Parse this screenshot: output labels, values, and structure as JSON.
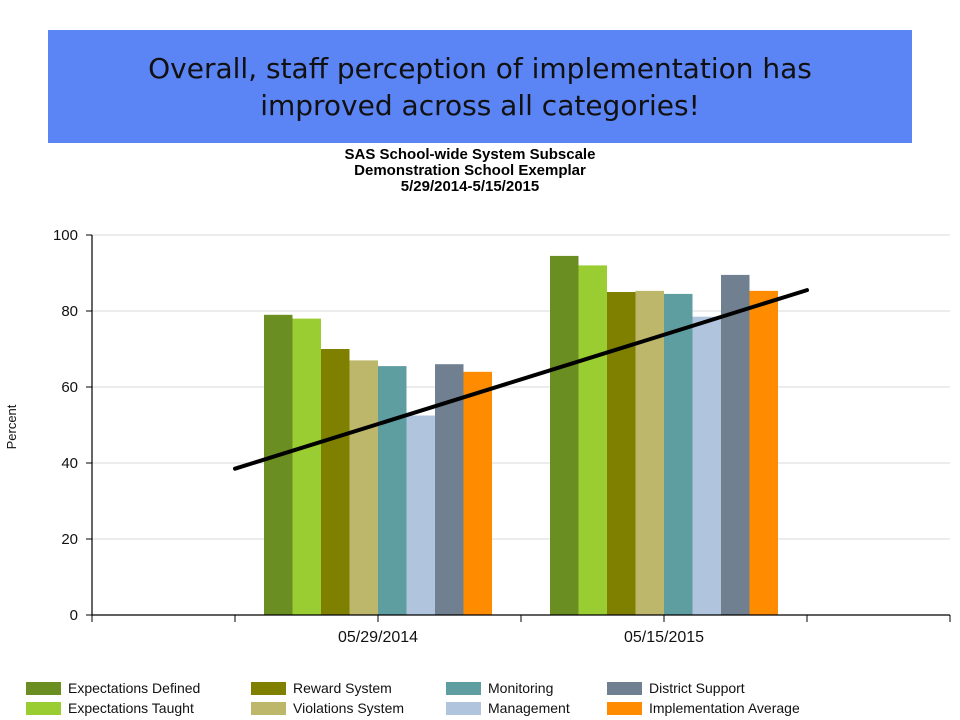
{
  "banner": {
    "text": "Overall, staff perception of implementation has improved across all categories!"
  },
  "chart_data": {
    "type": "bar",
    "title_lines": [
      "SAS School-wide System Subscale",
      "Demonstration School Exemplar",
      "5/29/2014-5/15/2015"
    ],
    "ylabel": "Percent",
    "xlabel": "",
    "ylim": [
      0,
      100
    ],
    "yticks": [
      0,
      20,
      40,
      60,
      80,
      100
    ],
    "grid": true,
    "legend_position": "bottom",
    "categories": [
      "05/29/2014",
      "05/15/2015"
    ],
    "series": [
      {
        "name": "Expectations Defined",
        "color": "#6b8e23",
        "values": [
          79,
          94.5
        ]
      },
      {
        "name": "Expectations Taught",
        "color": "#9acd32",
        "values": [
          78,
          92
        ]
      },
      {
        "name": "Reward System",
        "color": "#808000",
        "values": [
          70,
          85
        ]
      },
      {
        "name": "Violations System",
        "color": "#bdb76b",
        "values": [
          67,
          85.3
        ]
      },
      {
        "name": "Monitoring",
        "color": "#5f9ea0",
        "values": [
          65.5,
          84.5
        ]
      },
      {
        "name": "Management",
        "color": "#b0c4de",
        "values": [
          52.5,
          78.5
        ]
      },
      {
        "name": "District Support",
        "color": "#708090",
        "values": [
          66,
          89.5
        ]
      },
      {
        "name": "Implementation Average",
        "color": "#ff8c00",
        "values": [
          64,
          85.3
        ]
      }
    ],
    "trendline": {
      "color": "#000000",
      "from": {
        "category_position": -0.5,
        "value": 38.5
      },
      "to": {
        "category_position": 1.5,
        "value": 85.5
      }
    }
  }
}
